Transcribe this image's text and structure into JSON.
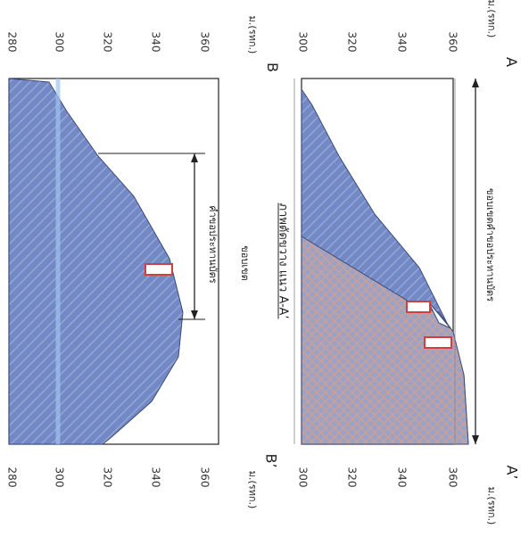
{
  "corners": {
    "a": "A",
    "a_prime": "A’",
    "b": "B",
    "b_prime": "B’"
  },
  "axis_unit": "ม.(รทก.)",
  "top_section": {
    "left_ticks": [
      "300",
      "320",
      "340",
      "360"
    ],
    "right_ticks": [
      "300",
      "320",
      "340",
      "360"
    ],
    "dimension_label": "ขอบเขตคำขอประทานบัตร"
  },
  "section_title": "ภาพตัดขวาง แนว A-A’",
  "bottom_section": {
    "left_ticks": [
      "280",
      "300",
      "320",
      "340",
      "360"
    ],
    "right_ticks": [
      "280",
      "300",
      "320",
      "340",
      "360"
    ],
    "dimension_label_line1": "ขอบเขต",
    "dimension_label_line2": "คำขอประทานบัตร"
  },
  "colors": {
    "terrain": "#7389c6",
    "rock_fill": "#c9aaa2",
    "marker_red": "#d04040",
    "line": "#222222"
  }
}
